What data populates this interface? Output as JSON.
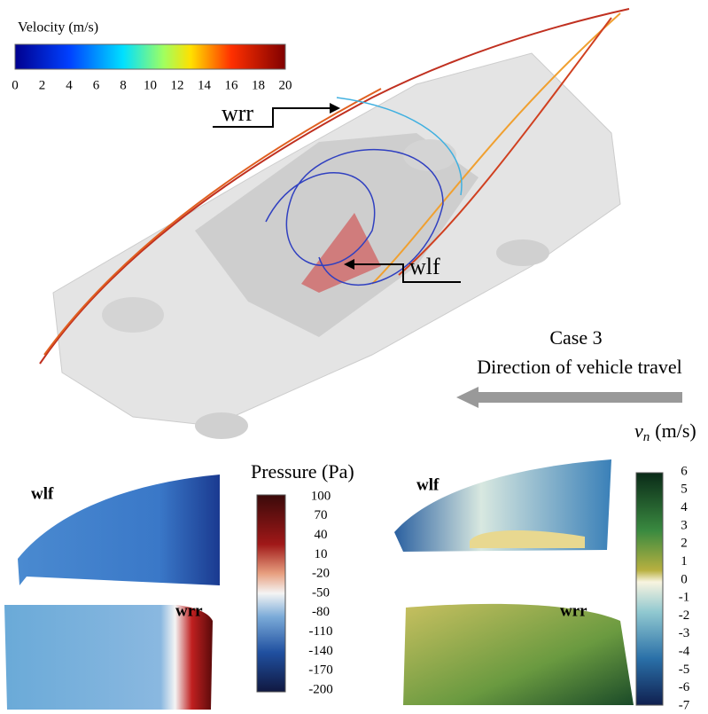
{
  "velocity_colorbar": {
    "title": "Velocity (m/s)",
    "ticks": [
      0,
      2,
      4,
      6,
      8,
      10,
      12,
      14,
      16,
      18,
      20
    ]
  },
  "callouts": {
    "upper": "wrr",
    "lower": "wlf"
  },
  "case": {
    "name": "Case 3",
    "direction": "Direction of vehicle travel"
  },
  "pressure_panels": {
    "front": "wlf",
    "rear": "wrr"
  },
  "pressure_colorbar": {
    "title": "Pressure (Pa)",
    "ticks": [
      100,
      70,
      40,
      10,
      -20,
      -50,
      -80,
      -110,
      -140,
      -170,
      -200
    ]
  },
  "vn_panels": {
    "front": "wlf",
    "rear": "wrr"
  },
  "vn_colorbar": {
    "symbol": "v",
    "subscript": "n",
    "unit": "(m/s)",
    "ticks": [
      6,
      5,
      4,
      3,
      2,
      1,
      0,
      -1,
      -2,
      -3,
      -4,
      -5,
      -6,
      -7
    ]
  }
}
